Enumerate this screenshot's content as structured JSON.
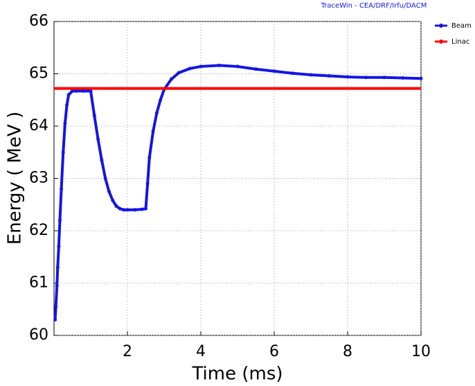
{
  "chart_data": {
    "type": "line",
    "header": "TraceWin - CEA/DRF/Irfu/DACM",
    "x_label": "Time (ms)",
    "y_label": "Energy ( MeV )",
    "xlim": [
      0,
      10
    ],
    "ylim": [
      60,
      66
    ],
    "xticks": [
      2,
      4,
      6,
      8,
      10
    ],
    "yticks": [
      60,
      61,
      62,
      63,
      64,
      65,
      66
    ],
    "grid": true,
    "legend": "top-right",
    "series": [
      {
        "name": "Beam",
        "color": "#1414e6",
        "markers": true,
        "x": [
          0.03,
          0.05,
          0.08,
          0.1,
          0.13,
          0.16,
          0.2,
          0.25,
          0.3,
          0.35,
          0.4,
          0.5,
          0.6,
          0.8,
          1.0,
          1.1,
          1.2,
          1.3,
          1.4,
          1.5,
          1.6,
          1.7,
          1.8,
          1.9,
          2.0,
          2.2,
          2.4,
          2.5,
          2.55,
          2.6,
          2.7,
          2.8,
          2.9,
          3.0,
          3.2,
          3.4,
          3.7,
          4.0,
          4.5,
          5.0,
          5.5,
          6.0,
          6.5,
          7.0,
          7.5,
          8.0,
          8.5,
          9.0,
          9.5,
          10.0
        ],
        "values": [
          60.3,
          60.55,
          60.95,
          61.3,
          61.7,
          62.2,
          62.8,
          63.5,
          64.05,
          64.4,
          64.6,
          64.67,
          64.67,
          64.67,
          64.67,
          64.2,
          63.75,
          63.35,
          63.0,
          62.75,
          62.58,
          62.47,
          62.42,
          62.4,
          62.4,
          62.4,
          62.41,
          62.42,
          62.9,
          63.4,
          63.9,
          64.25,
          64.5,
          64.7,
          64.9,
          65.02,
          65.1,
          65.14,
          65.16,
          65.14,
          65.09,
          65.05,
          65.01,
          64.98,
          64.96,
          64.94,
          64.93,
          64.93,
          64.92,
          64.91
        ]
      },
      {
        "name": "Linac",
        "color": "#ff0000",
        "markers": false,
        "x": [
          0,
          10
        ],
        "values": [
          64.72,
          64.72
        ]
      }
    ]
  }
}
